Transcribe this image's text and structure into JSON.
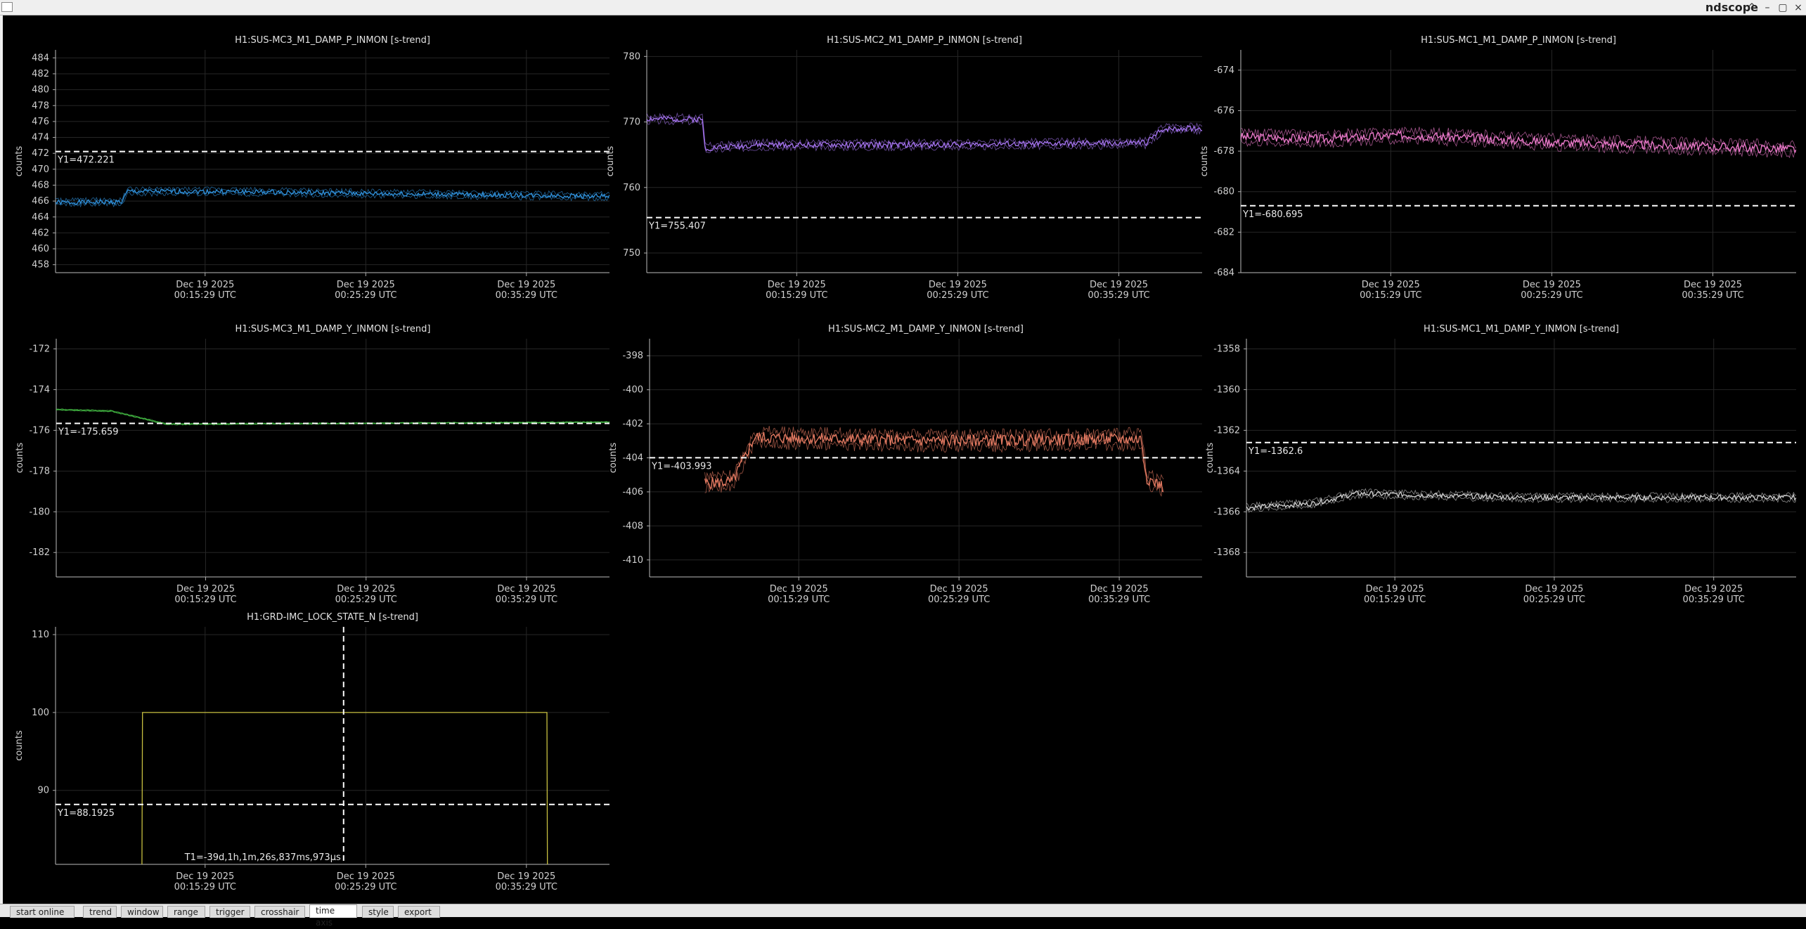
{
  "window": {
    "title": "ndscope",
    "controls": {
      "up": "^",
      "minimize": "–",
      "maximize": "▢",
      "close": "×"
    }
  },
  "time_axis": {
    "tick_dates": [
      "Dec 19 2025",
      "Dec 19 2025",
      "Dec 19 2025"
    ],
    "tick_times": [
      "00:15:29 UTC",
      "00:25:29 UTC",
      "00:35:29 UTC"
    ]
  },
  "ylabel": "counts",
  "colors": {
    "background": "#000000",
    "grid": "#262626",
    "cursor": "#ffffff",
    "trace_mc3_p": "#2f8fd8",
    "trace_mc2_p": "#a070e8",
    "trace_mc1_p": "#e878c8",
    "trace_mc3_y": "#40b040",
    "trace_mc2_y": "#e07860",
    "trace_mc1_y": "#c8c8c8",
    "trace_lock": "#c8c040"
  },
  "chart_data": [
    {
      "type": "line",
      "title": "H1:SUS-MC3_M1_DAMP_P_INMON [s-trend]",
      "ylabel": "counts",
      "ylim": [
        457,
        485
      ],
      "yticks": [
        458,
        460,
        462,
        464,
        466,
        468,
        470,
        472,
        474,
        476,
        478,
        480,
        482,
        484
      ],
      "cursor": {
        "label": "Y1=472.221",
        "value": 472.221
      },
      "series": [
        {
          "x": [
            0,
            0.12,
            0.13,
            0.3,
            0.6,
            1.0
          ],
          "values": [
            465.8,
            465.9,
            467.2,
            467.2,
            466.9,
            466.6
          ]
        }
      ]
    },
    {
      "type": "line",
      "title": "H1:SUS-MC2_M1_DAMP_P_INMON [s-trend]",
      "ylabel": "counts",
      "ylim": [
        747,
        781
      ],
      "yticks": [
        750,
        760,
        770,
        780
      ],
      "cursor": {
        "label": "Y1=755.407",
        "value": 755.407
      },
      "series": [
        {
          "x": [
            0,
            0.1,
            0.105,
            0.2,
            0.5,
            0.9,
            0.93,
            1.0
          ],
          "values": [
            770.5,
            770.4,
            766,
            766.5,
            766.5,
            766.8,
            769,
            769
          ]
        }
      ]
    },
    {
      "type": "line",
      "title": "H1:SUS-MC1_M1_DAMP_P_INMON [s-trend]",
      "ylabel": "counts",
      "ylim": [
        -684,
        -673
      ],
      "yticks": [
        -674,
        -676,
        -678,
        -680,
        -682,
        -684
      ],
      "cursor": {
        "label": "Y1=-680.695",
        "value": -680.695
      },
      "series": [
        {
          "x": [
            0,
            0.15,
            0.3,
            0.6,
            1.0
          ],
          "values": [
            -677.3,
            -677.4,
            -677.2,
            -677.6,
            -677.9
          ]
        }
      ]
    },
    {
      "type": "line",
      "title": "H1:SUS-MC3_M1_DAMP_Y_INMON [s-trend]",
      "ylabel": "counts",
      "ylim": [
        -183.2,
        -171.5
      ],
      "yticks": [
        -172,
        -174,
        -176,
        -178,
        -180,
        -182
      ],
      "cursor": {
        "label": "Y1=-175.659",
        "value": -175.659
      },
      "series": [
        {
          "x": [
            0,
            0.1,
            0.2,
            0.6,
            1.0
          ],
          "values": [
            -174.98,
            -175.05,
            -175.7,
            -175.65,
            -175.6
          ]
        }
      ]
    },
    {
      "type": "line",
      "title": "H1:SUS-MC2_M1_DAMP_Y_INMON [s-trend]",
      "ylabel": "counts",
      "ylim": [
        -411,
        -397
      ],
      "yticks": [
        -398,
        -400,
        -402,
        -404,
        -406,
        -408,
        -410
      ],
      "cursor": {
        "label": "Y1=-403.993",
        "value": -403.993
      },
      "series": [
        {
          "x": [
            0.1,
            0.15,
            0.19,
            0.5,
            0.89,
            0.9,
            0.93
          ],
          "values": [
            -405.5,
            -405.4,
            -402.8,
            -403.0,
            -402.9,
            -405.2,
            -405.7
          ]
        }
      ]
    },
    {
      "type": "line",
      "title": "H1:SUS-MC1_M1_DAMP_Y_INMON [s-trend]",
      "ylabel": "counts",
      "ylim": [
        -1369.2,
        -1357.5
      ],
      "yticks": [
        -1358,
        -1360,
        -1362,
        -1364,
        -1366,
        -1368
      ],
      "cursor": {
        "label": "Y1=-1362.6",
        "value": -1362.6
      },
      "series": [
        {
          "x": [
            0,
            0.12,
            0.2,
            0.5,
            1.0
          ],
          "values": [
            -1365.8,
            -1365.6,
            -1365.1,
            -1365.3,
            -1365.3
          ]
        }
      ]
    },
    {
      "type": "line",
      "title": "H1:GRD-IMC_LOCK_STATE_N [s-trend]",
      "ylabel": "counts",
      "ylim": [
        80.5,
        111
      ],
      "yticks": [
        90,
        100,
        110
      ],
      "cursor": {
        "label": "Y1=88.1925",
        "value": 88.1925
      },
      "tcursor": {
        "label": "T1=-39d,1h,1m,26s,837ms,973μs",
        "x": 0.52
      },
      "series": [
        {
          "x": [
            0.156,
            0.157,
            0.887,
            0.888
          ],
          "values": [
            80,
            100,
            100,
            80
          ]
        }
      ]
    }
  ],
  "tabs": [
    "start online",
    "trend",
    "window",
    "range",
    "trigger",
    "crosshair",
    "time axis",
    "style",
    "export"
  ],
  "active_tab": "time axis"
}
